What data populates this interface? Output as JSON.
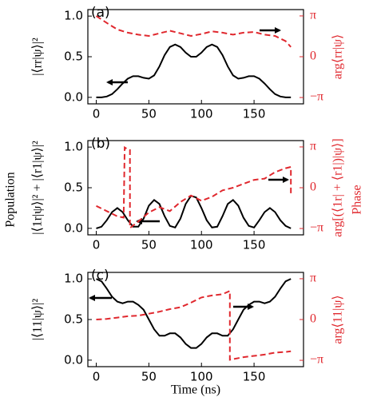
{
  "figure": {
    "ylabel": "Population",
    "y2label": "Phase",
    "xlabel": "Time (ns)"
  },
  "chart_data": [
    {
      "type": "line",
      "panel_label": "(a)",
      "ylabel": "|⟨rr|ψ⟩|²",
      "y2label": "arg⟨rr|ψ⟩",
      "xlim": [
        -8,
        197
      ],
      "xticks": [
        0,
        50,
        100,
        150
      ],
      "ylim": [
        -0.08,
        1.08
      ],
      "yticks": [
        {
          "value": 0,
          "label": "0.0"
        },
        0.5,
        {
          "value": 1,
          "label": "1.0"
        }
      ],
      "y2lim": [
        -3.63,
        3.63
      ],
      "y2ticks": [
        {
          "value": -3.14159,
          "label": "−π"
        },
        0,
        {
          "value": 3.14159,
          "label": "π"
        }
      ],
      "series": [
        {
          "color": "#000000",
          "linestyle": "solid",
          "x": [
            0,
            5,
            10,
            15,
            20,
            25,
            30,
            35,
            40,
            45,
            50,
            55,
            60,
            65,
            70,
            75,
            80,
            85,
            90,
            95,
            100,
            105,
            110,
            115,
            120,
            125,
            130,
            135,
            140,
            145,
            150,
            155,
            160,
            165,
            170,
            175,
            180,
            185
          ],
          "values": [
            0,
            0,
            0.01,
            0.04,
            0.1,
            0.17,
            0.23,
            0.26,
            0.26,
            0.24,
            0.23,
            0.27,
            0.38,
            0.52,
            0.62,
            0.65,
            0.62,
            0.55,
            0.5,
            0.5,
            0.55,
            0.62,
            0.65,
            0.62,
            0.52,
            0.38,
            0.27,
            0.23,
            0.24,
            0.26,
            0.26,
            0.23,
            0.17,
            0.1,
            0.04,
            0.01,
            0,
            0
          ]
        },
        {
          "color": "#e0282e",
          "linestyle": "dashed",
          "axis": "y2",
          "x": [
            0,
            10,
            20,
            30,
            40,
            50,
            60,
            70,
            80,
            90,
            100,
            110,
            120,
            130,
            140,
            150,
            160,
            170,
            180,
            185
          ],
          "values": [
            3.14,
            2.6,
            2.1,
            1.85,
            1.7,
            1.6,
            1.8,
            2.0,
            1.8,
            1.6,
            1.75,
            1.95,
            1.85,
            1.7,
            1.85,
            1.9,
            1.7,
            1.6,
            1.2,
            0.75
          ]
        }
      ]
    },
    {
      "type": "line",
      "panel_label": "(b)",
      "ylabel": "|⟨1r|ψ⟩|² + |⟨r1|ψ⟩|²",
      "y2label": "arg[(⟨1r| + ⟨r1|)|ψ⟩]",
      "xlim": [
        -8,
        197
      ],
      "xticks": [
        0,
        50,
        100,
        150
      ],
      "ylim": [
        -0.08,
        1.08
      ],
      "yticks": [
        {
          "value": 0,
          "label": "0.0"
        },
        0.5,
        {
          "value": 1,
          "label": "1.0"
        }
      ],
      "y2lim": [
        -3.63,
        3.63
      ],
      "y2ticks": [
        {
          "value": -3.14159,
          "label": "−π"
        },
        0,
        {
          "value": 3.14159,
          "label": "π"
        }
      ],
      "series": [
        {
          "color": "#000000",
          "linestyle": "solid",
          "x": [
            0,
            5,
            10,
            15,
            20,
            25,
            30,
            35,
            40,
            45,
            50,
            55,
            60,
            65,
            70,
            75,
            80,
            85,
            90,
            95,
            100,
            105,
            110,
            115,
            120,
            125,
            130,
            135,
            140,
            145,
            150,
            155,
            160,
            165,
            170,
            175,
            180,
            185
          ],
          "values": [
            0,
            0.02,
            0.1,
            0.2,
            0.25,
            0.2,
            0.1,
            0.02,
            0.02,
            0.12,
            0.28,
            0.35,
            0.3,
            0.15,
            0.03,
            0.01,
            0.12,
            0.3,
            0.4,
            0.38,
            0.25,
            0.1,
            0.01,
            0.02,
            0.15,
            0.3,
            0.35,
            0.28,
            0.13,
            0.03,
            0.01,
            0.1,
            0.2,
            0.25,
            0.2,
            0.1,
            0.03,
            0
          ]
        },
        {
          "color": "#e0282e",
          "linestyle": "dashed",
          "axis": "y2",
          "x": [
            0,
            10,
            20,
            26,
            27,
            27,
            31,
            32,
            32,
            40,
            50,
            60,
            70,
            80,
            90,
            100,
            110,
            120,
            130,
            140,
            150,
            160,
            170,
            180,
            185,
            185
          ],
          "values": [
            -1.4,
            -1.8,
            -2.2,
            -2.3,
            3.1,
            3.1,
            2.9,
            2.9,
            -3.1,
            -2.6,
            -1.9,
            -1.5,
            -1.8,
            -1.1,
            -0.6,
            -1.0,
            -0.7,
            -0.2,
            0,
            0.3,
            0.6,
            0.7,
            1.2,
            1.5,
            1.6,
            -0.5
          ]
        }
      ]
    },
    {
      "type": "line",
      "panel_label": "(c)",
      "ylabel": "|⟨11|ψ⟩|²",
      "y2label": "arg⟨11|ψ⟩",
      "xlim": [
        -8,
        197
      ],
      "xticks": [
        0,
        50,
        100,
        150
      ],
      "ylim": [
        -0.08,
        1.08
      ],
      "yticks": [
        {
          "value": 0,
          "label": "0.0"
        },
        0.5,
        {
          "value": 1,
          "label": "1.0"
        }
      ],
      "y2lim": [
        -3.63,
        3.63
      ],
      "y2ticks": [
        {
          "value": -3.14159,
          "label": "−π"
        },
        0,
        {
          "value": 3.14159,
          "label": "π"
        }
      ],
      "series": [
        {
          "color": "#000000",
          "linestyle": "solid",
          "x": [
            0,
            5,
            10,
            15,
            20,
            25,
            30,
            35,
            40,
            45,
            50,
            55,
            60,
            65,
            70,
            75,
            80,
            85,
            90,
            95,
            100,
            105,
            110,
            115,
            120,
            125,
            130,
            135,
            140,
            145,
            150,
            155,
            160,
            165,
            170,
            175,
            180,
            185
          ],
          "values": [
            1.0,
            0.97,
            0.88,
            0.78,
            0.72,
            0.7,
            0.72,
            0.72,
            0.68,
            0.62,
            0.5,
            0.38,
            0.3,
            0.3,
            0.33,
            0.33,
            0.28,
            0.2,
            0.15,
            0.15,
            0.2,
            0.28,
            0.33,
            0.33,
            0.3,
            0.3,
            0.38,
            0.5,
            0.62,
            0.68,
            0.72,
            0.72,
            0.7,
            0.72,
            0.78,
            0.88,
            0.97,
            1.0
          ]
        },
        {
          "color": "#e0282e",
          "linestyle": "dashed",
          "axis": "y2",
          "x": [
            0,
            10,
            20,
            30,
            40,
            50,
            60,
            70,
            80,
            90,
            100,
            110,
            120,
            127,
            127,
            140,
            150,
            160,
            170,
            180,
            185
          ],
          "values": [
            0,
            0.05,
            0.15,
            0.25,
            0.3,
            0.45,
            0.6,
            0.8,
            0.95,
            1.3,
            1.7,
            1.85,
            1.95,
            2.2,
            -3.1,
            -2.9,
            -2.8,
            -2.7,
            -2.55,
            -2.5,
            -2.45
          ]
        }
      ]
    }
  ]
}
